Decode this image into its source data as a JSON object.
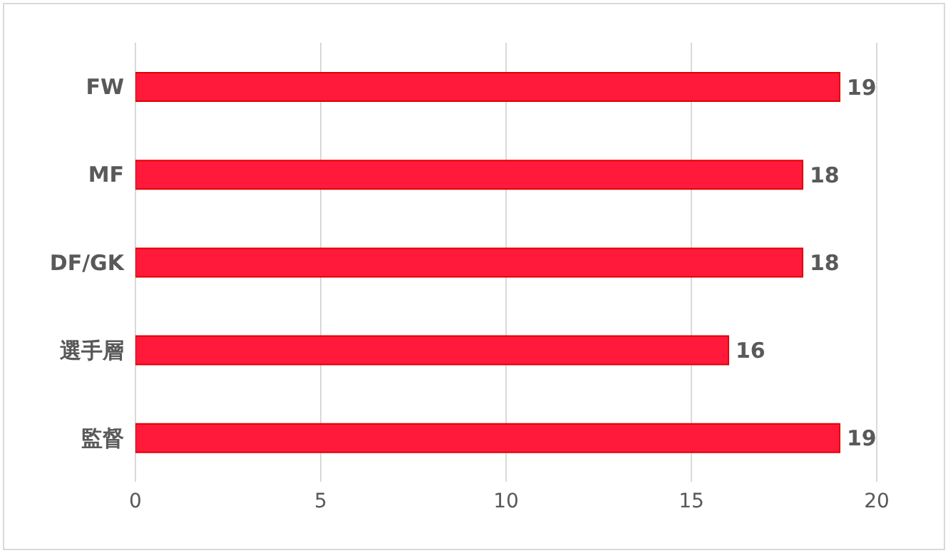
{
  "chart_data": {
    "type": "bar",
    "orientation": "horizontal",
    "categories": [
      "FW",
      "MF",
      "DF/GK",
      "選手層",
      "監督"
    ],
    "values": [
      19,
      18,
      18,
      16,
      19
    ],
    "color": "#ff1a3c",
    "xlim": [
      0,
      20
    ],
    "xticks": [
      0,
      5,
      10,
      15,
      20
    ],
    "grid": "x",
    "data_labels": true
  }
}
